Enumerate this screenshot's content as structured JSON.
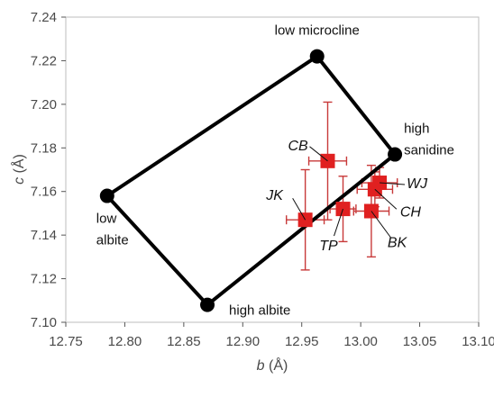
{
  "chart_data": {
    "type": "scatter",
    "xlabel_symbol": "b",
    "xlabel_unit": " (Å)",
    "ylabel_symbol": "c",
    "ylabel_unit": " (Å)",
    "xlim": [
      12.75,
      13.1
    ],
    "ylim": [
      7.1,
      7.24
    ],
    "xticks": [
      "12.75",
      "12.80",
      "12.85",
      "12.90",
      "12.95",
      "13.00",
      "13.05",
      "13.10"
    ],
    "yticks": [
      "7.10",
      "7.12",
      "7.14",
      "7.16",
      "7.18",
      "7.20",
      "7.22",
      "7.24"
    ],
    "grid": false,
    "colors": {
      "endmember": "#000000",
      "sample": "#e02020",
      "errorbar": "#c83a3a"
    },
    "endmembers": [
      {
        "label_lines": [
          "low microcline"
        ],
        "x": 12.963,
        "y": 7.222
      },
      {
        "label_lines": [
          "high",
          "sanidine"
        ],
        "x": 13.029,
        "y": 7.177
      },
      {
        "label_lines": [
          "high albite"
        ],
        "x": 12.87,
        "y": 7.108
      },
      {
        "label_lines": [
          "low",
          "albite"
        ],
        "x": 12.785,
        "y": 7.158
      }
    ],
    "samples": [
      {
        "label": "CB",
        "x": 12.972,
        "y": 7.174,
        "xerr": 0.016,
        "yerr": 0.027
      },
      {
        "label": "WJ",
        "x": 13.016,
        "y": 7.164,
        "xerr": 0.015,
        "yerr": 0.007
      },
      {
        "label": "CH",
        "x": 13.012,
        "y": 7.161,
        "xerr": 0.015,
        "yerr": 0.008
      },
      {
        "label": "JK",
        "x": 12.953,
        "y": 7.147,
        "xerr": 0.016,
        "yerr": 0.023
      },
      {
        "label": "TP",
        "x": 12.985,
        "y": 7.152,
        "xerr": 0.011,
        "yerr": 0.015
      },
      {
        "label": "BK",
        "x": 13.009,
        "y": 7.151,
        "xerr": 0.015,
        "yerr": 0.021
      }
    ]
  }
}
